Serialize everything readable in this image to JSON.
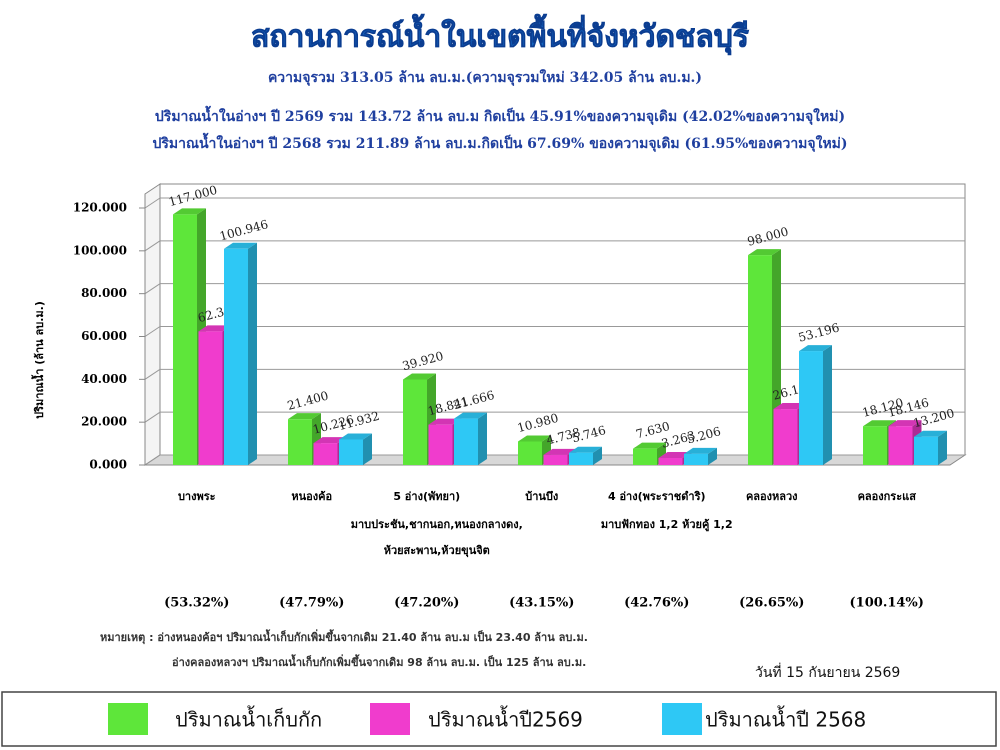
{
  "chart_data": {
    "type": "bar3d",
    "title": "สถานการณ์น้ำในเขตพื้นที่จังหวัดชลบุรี",
    "subtitles": [
      "ความจุรวม  313.05 ล้าน ลบ.ม.(ความจุรวมใหม่ 342.05 ล้าน ลบ.ม.)",
      "ปริมาณน้ำในอ่างฯ ปี 2569 รวม 143.72 ล้าน ลบ.ม กิดเป็น 45.91%ของความจุเดิม  (42.02%ของความจุใหม่)",
      "ปริมาณน้ำในอ่างฯ ปี  2568 รวม 211.89 ล้าน ลบ.ม.กิดเป็น 67.69% ของความจุเดิม (61.95%ของความจุใหม่)"
    ],
    "y_label": "ปริมาณน้ำ (ล้าน ลบ.ม.)",
    "categories": [
      "บางพระ",
      "หนองค้อ",
      "5 อ่าง(พัทยา)",
      "บ้านบึง",
      "4 อ่าง(พระราชดำริ)",
      "คลองหลวง",
      "คลองกระแส"
    ],
    "category_notes": [
      null,
      null,
      [
        "มาบประชัน,ชากนอก,หนองกลางดง,",
        "ห้วยสะพาน,ห้วยขุนจิต"
      ],
      null,
      [
        "มาบฟักทอง 1,2 ห้วยคู้ 1,2"
      ],
      null,
      null
    ],
    "category_percents": [
      "(53.32%)",
      "(47.79%)",
      "(47.20%)",
      "(43.15%)",
      "(42.76%)",
      "(26.65%)",
      "(100.14%)"
    ],
    "series": [
      {
        "name": "ปริมาณน้ำเก็บกัก",
        "color": "#5ee63a",
        "values": [
          117,
          21.4,
          39.92,
          10.98,
          7.63,
          98,
          18.12
        ],
        "value_labels": [
          "117.000",
          "21.400",
          "39.920",
          "10.980",
          "7.630",
          "98.000",
          "18.120"
        ]
      },
      {
        "name": "ปริมาณน้ำปี2569",
        "color": "#f03ccd",
        "values": [
          62.387,
          10.226,
          18.841,
          4.738,
          3.263,
          26.119,
          18.146
        ]
      },
      {
        "name": "ปริมาณน้ำปี 2568",
        "color": "#2ec8f5",
        "values": [
          100.946,
          11.932,
          21.666,
          5.746,
          5.206,
          53.196,
          13.2
        ],
        "value_labels": [
          "100.946",
          "11.932",
          "21.666",
          "5.746",
          "5.206",
          "53.196",
          "13.200"
        ]
      }
    ],
    "ylim": [
      0,
      120
    ],
    "yticks": [
      {
        "value": 0,
        "label": "0.000"
      },
      {
        "value": 20,
        "label": "20.000"
      },
      {
        "value": 40,
        "label": "40.000"
      },
      {
        "value": 60,
        "label": "60.000"
      },
      {
        "value": 80,
        "label": "80.000"
      },
      {
        "value": 100,
        "label": "100.000"
      },
      {
        "value": 120,
        "label": "120.000"
      }
    ],
    "grid": true,
    "notes": [
      "หมายเหตุ :  อ่างหนองค้อฯ ปริมาณน้ำเก็บกักเพิ่มขึ้นจากเดิม 21.40 ล้าน ลบ.ม เป็น 23.40 ล้าน ลบ.ม.",
      "อ่างคลองหลวงฯ ปริมาณน้ำเก็บกักเพิ่มขึ้นจากเดิม 98 ล้าน ลบ.ม. เป็น 125 ล้าน ลบ.ม."
    ],
    "date": "วันที่ 15 กันยายน 2569"
  }
}
